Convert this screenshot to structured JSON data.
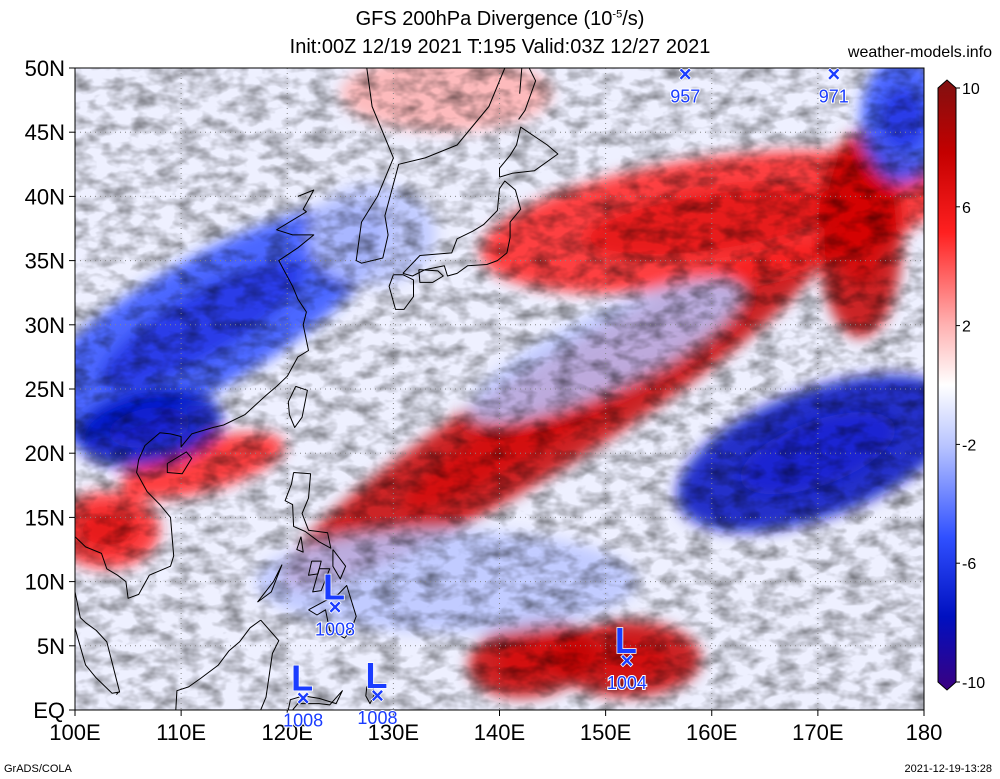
{
  "header": {
    "title_line1": "GFS 200hPa Divergence (10",
    "title_exp": "-5",
    "title_unit": "/s)",
    "title_line2": "Init:00Z 12/19 2021 T:195 Valid:03Z 12/27 2021",
    "credit": "weather-models.info"
  },
  "footer": {
    "left": "GrADS/COLA",
    "right": "2021-12-19-13:28"
  },
  "colors": {
    "strong_red": "#c40000",
    "red": "#ff2020",
    "light_red": "#ffb0b0",
    "white": "#ffffff",
    "light_blue": "#b8c4ff",
    "blue": "#3050ff",
    "strong_blue": "#0010c0",
    "low_marker": "#1a3cff"
  },
  "chart_data": {
    "type": "heatmap",
    "title": "GFS 200hPa Divergence (10^-5/s)",
    "xlim": [
      100,
      180
    ],
    "ylim": [
      0,
      50
    ],
    "grid": true,
    "x_ticks": [
      {
        "v": 100,
        "label": "100E"
      },
      {
        "v": 110,
        "label": "110E"
      },
      {
        "v": 120,
        "label": "120E"
      },
      {
        "v": 130,
        "label": "130E"
      },
      {
        "v": 140,
        "label": "140E"
      },
      {
        "v": 150,
        "label": "150E"
      },
      {
        "v": 160,
        "label": "160E"
      },
      {
        "v": 170,
        "label": "170E"
      },
      {
        "v": 180,
        "label": "180"
      }
    ],
    "y_ticks": [
      {
        "v": 0,
        "label": "EQ"
      },
      {
        "v": 5,
        "label": "5N"
      },
      {
        "v": 10,
        "label": "10N"
      },
      {
        "v": 15,
        "label": "15N"
      },
      {
        "v": 20,
        "label": "20N"
      },
      {
        "v": 25,
        "label": "25N"
      },
      {
        "v": 30,
        "label": "30N"
      },
      {
        "v": 35,
        "label": "35N"
      },
      {
        "v": 40,
        "label": "40N"
      },
      {
        "v": 45,
        "label": "45N"
      },
      {
        "v": 50,
        "label": "50N"
      }
    ],
    "colorbar": {
      "min": -10,
      "max": 10,
      "tick_labels": [
        {
          "v": 10,
          "label": "10"
        },
        {
          "v": 6,
          "label": "6"
        },
        {
          "v": 2,
          "label": "2"
        },
        {
          "v": -2,
          "label": "-2"
        },
        {
          "v": -6,
          "label": "-6"
        },
        {
          "v": -10,
          "label": "-10"
        }
      ]
    },
    "field_features": [
      {
        "kind": "div",
        "lon": 145,
        "lat": 23,
        "rx": 30,
        "ry": 4,
        "angle": -32,
        "v": 6
      },
      {
        "kind": "div",
        "lon": 160,
        "lat": 38,
        "rx": 22,
        "ry": 5,
        "angle": -8,
        "v": 5
      },
      {
        "kind": "div",
        "lon": 174,
        "lat": 37,
        "rx": 4,
        "ry": 8,
        "angle": 0,
        "v": 7
      },
      {
        "kind": "div",
        "lon": 103,
        "lat": 14,
        "rx": 5,
        "ry": 3,
        "angle": 0,
        "v": 5
      },
      {
        "kind": "div",
        "lon": 152,
        "lat": 4,
        "rx": 7,
        "ry": 3,
        "angle": 0,
        "v": 7
      },
      {
        "kind": "div",
        "lon": 143,
        "lat": 4,
        "rx": 6,
        "ry": 3,
        "angle": -10,
        "v": 6
      },
      {
        "kind": "div",
        "lon": 112,
        "lat": 19,
        "rx": 8,
        "ry": 2,
        "angle": -15,
        "v": 4
      },
      {
        "kind": "div",
        "lon": 135,
        "lat": 48,
        "rx": 10,
        "ry": 3,
        "angle": 0,
        "v": 3
      },
      {
        "kind": "conv",
        "lon": 112,
        "lat": 30,
        "rx": 20,
        "ry": 5,
        "angle": -30,
        "v": -5
      },
      {
        "kind": "conv",
        "lon": 107,
        "lat": 22,
        "rx": 7,
        "ry": 3,
        "angle": -10,
        "v": -7
      },
      {
        "kind": "conv",
        "lon": 170,
        "lat": 20,
        "rx": 14,
        "ry": 5,
        "angle": -20,
        "v": -6
      },
      {
        "kind": "conv",
        "lon": 178,
        "lat": 46,
        "rx": 4,
        "ry": 5,
        "angle": 0,
        "v": -5
      },
      {
        "kind": "conv",
        "lon": 150,
        "lat": 28,
        "rx": 14,
        "ry": 3,
        "angle": -25,
        "v": -3
      },
      {
        "kind": "conv",
        "lon": 135,
        "lat": 10,
        "rx": 18,
        "ry": 4,
        "angle": 0,
        "v": -3
      },
      {
        "kind": "conv",
        "lon": 128,
        "lat": 37,
        "rx": 6,
        "ry": 4,
        "angle": 0,
        "v": -3
      }
    ],
    "lows": [
      {
        "lon": 157.5,
        "lat": 49.5,
        "pressure": "957"
      },
      {
        "lon": 171.5,
        "lat": 49.5,
        "pressure": "971"
      },
      {
        "lon": 124.5,
        "lat": 8.0,
        "pressure": "1008"
      },
      {
        "lon": 152.0,
        "lat": 3.8,
        "pressure": "1004"
      },
      {
        "lon": 121.5,
        "lat": 0.9,
        "pressure": "1008"
      },
      {
        "lon": 128.5,
        "lat": 1.1,
        "pressure": "1008"
      }
    ],
    "low_symbol": "L",
    "low_marker": "×",
    "coastlines": [
      [
        [
          127.5,
          50
        ],
        [
          128,
          47
        ],
        [
          130,
          43
        ],
        [
          128.5,
          40
        ],
        [
          127,
          38
        ],
        [
          126.5,
          35
        ],
        [
          127,
          34.8
        ],
        [
          129,
          35.2
        ],
        [
          129.5,
          37
        ],
        [
          129.2,
          38.5
        ],
        [
          130.5,
          42.5
        ],
        [
          133,
          43
        ],
        [
          136,
          44
        ],
        [
          139,
          47
        ],
        [
          140.5,
          50
        ]
      ],
      [
        [
          121,
          40
        ],
        [
          122.5,
          40.5
        ],
        [
          121.5,
          39
        ],
        [
          121.8,
          38.8
        ],
        [
          119,
          37.4
        ],
        [
          120.5,
          37
        ],
        [
          122.5,
          37
        ],
        [
          121,
          36
        ],
        [
          119.2,
          35
        ],
        [
          120.5,
          33
        ],
        [
          121,
          32
        ],
        [
          121.8,
          31
        ],
        [
          121.5,
          30
        ],
        [
          122,
          28
        ],
        [
          121,
          27.5
        ],
        [
          120,
          26
        ],
        [
          119,
          25.2
        ],
        [
          118,
          24.5
        ],
        [
          116,
          23
        ],
        [
          114,
          22.2
        ],
        [
          113,
          22
        ],
        [
          111,
          21.5
        ],
        [
          110,
          20.5
        ],
        [
          110,
          21.3
        ],
        [
          109,
          21.5
        ],
        [
          108,
          21.6
        ],
        [
          106.6,
          20.6
        ],
        [
          106,
          19.5
        ],
        [
          105.8,
          18.5
        ],
        [
          106.8,
          17
        ],
        [
          108,
          16
        ],
        [
          109,
          15
        ],
        [
          109.3,
          12
        ],
        [
          109,
          11.2
        ],
        [
          107,
          10.5
        ],
        [
          106,
          9
        ],
        [
          105,
          8.7
        ],
        [
          104.8,
          10
        ],
        [
          104,
          10.5
        ],
        [
          103,
          11
        ],
        [
          102.5,
          12.2
        ],
        [
          101,
          12.7
        ],
        [
          100,
          13.5
        ],
        [
          99.5,
          11
        ],
        [
          100,
          9.2
        ],
        [
          100.5,
          7.2
        ],
        [
          101,
          6.8
        ],
        [
          102,
          6.2
        ],
        [
          103,
          5.3
        ],
        [
          103.4,
          4
        ],
        [
          104.2,
          1.4
        ],
        [
          103.5,
          1.3
        ],
        [
          102,
          2.5
        ],
        [
          101,
          3.5
        ],
        [
          100.3,
          5.5
        ],
        [
          100,
          6.4
        ]
      ],
      [
        [
          120.8,
          25.2
        ],
        [
          121.9,
          24.9
        ],
        [
          121.4,
          22.8
        ],
        [
          120.7,
          22
        ],
        [
          120.2,
          23
        ],
        [
          120.1,
          24
        ],
        [
          120.8,
          25.2
        ]
      ],
      [
        [
          108.7,
          19.2
        ],
        [
          110.5,
          20.1
        ],
        [
          111,
          19.6
        ],
        [
          110.1,
          18.4
        ],
        [
          108.7,
          18.5
        ],
        [
          108.7,
          19.2
        ]
      ],
      [
        [
          130,
          33.9
        ],
        [
          129.6,
          33
        ],
        [
          130.2,
          31.2
        ],
        [
          131,
          31.2
        ],
        [
          131.9,
          32.2
        ],
        [
          131.9,
          33.5
        ],
        [
          130.9,
          33.9
        ],
        [
          130,
          33.9
        ]
      ],
      [
        [
          132.4,
          34.3
        ],
        [
          132.5,
          33.3
        ],
        [
          133.7,
          33.3
        ],
        [
          134.7,
          33.8
        ],
        [
          134.2,
          34.2
        ],
        [
          132.4,
          34.3
        ]
      ],
      [
        [
          130.9,
          34
        ],
        [
          132.5,
          35.4
        ],
        [
          135.5,
          35.6
        ],
        [
          136,
          36.7
        ],
        [
          137.5,
          37.3
        ],
        [
          138.5,
          37.8
        ],
        [
          139.8,
          38.9
        ],
        [
          140,
          40.6
        ],
        [
          140.5,
          41.2
        ],
        [
          141.5,
          40.5
        ],
        [
          142,
          39
        ],
        [
          141,
          38
        ],
        [
          141,
          36.8
        ],
        [
          140.7,
          35.6
        ],
        [
          139.8,
          35
        ],
        [
          138.8,
          34.7
        ],
        [
          137,
          34.6
        ],
        [
          136,
          34
        ],
        [
          135.1,
          33.8
        ],
        [
          134.8,
          34.6
        ],
        [
          133,
          34.3
        ],
        [
          131.8,
          33.8
        ],
        [
          130.9,
          34
        ]
      ],
      [
        [
          140,
          41.5
        ],
        [
          141.2,
          41.8
        ],
        [
          143.3,
          42
        ],
        [
          145.5,
          43.3
        ],
        [
          144.5,
          44
        ],
        [
          142,
          45.4
        ],
        [
          141.6,
          44
        ],
        [
          141,
          43.2
        ],
        [
          140,
          42.2
        ],
        [
          140,
          41.5
        ]
      ],
      [
        [
          141.8,
          46
        ],
        [
          142.4,
          46.7
        ],
        [
          143.4,
          49
        ],
        [
          142.8,
          50
        ],
        [
          142.1,
          50
        ],
        [
          141.9,
          48
        ]
      ],
      [
        [
          120.6,
          18.5
        ],
        [
          122.2,
          18.4
        ],
        [
          122,
          16.5
        ],
        [
          121.4,
          15.3
        ],
        [
          122,
          14
        ],
        [
          123.8,
          13.8
        ],
        [
          124.1,
          12.6
        ],
        [
          123,
          13.1
        ],
        [
          121.7,
          13.9
        ],
        [
          120.6,
          14.3
        ],
        [
          120.5,
          16
        ],
        [
          119.8,
          16.3
        ],
        [
          120.4,
          17.6
        ],
        [
          120.6,
          18.5
        ]
      ],
      [
        [
          121.3,
          13.5
        ],
        [
          121.5,
          12.3
        ],
        [
          120.9,
          12.5
        ],
        [
          121.3,
          13.5
        ]
      ],
      [
        [
          122.3,
          11.6
        ],
        [
          123.2,
          11.6
        ],
        [
          122.9,
          10.6
        ],
        [
          122,
          10.5
        ],
        [
          122.3,
          11.6
        ]
      ],
      [
        [
          123,
          11
        ],
        [
          124,
          11
        ],
        [
          123.2,
          9.3
        ],
        [
          122.4,
          9.2
        ],
        [
          123,
          11
        ]
      ],
      [
        [
          124.3,
          12.5
        ],
        [
          125.5,
          11.2
        ],
        [
          125,
          10.2
        ],
        [
          124.3,
          11.2
        ],
        [
          124.3,
          12.5
        ]
      ],
      [
        [
          117.2,
          8.4
        ],
        [
          118.7,
          10
        ],
        [
          119.5,
          11.3
        ],
        [
          118.5,
          9.2
        ],
        [
          117.2,
          8.4
        ]
      ],
      [
        [
          122,
          7.8
        ],
        [
          122.9,
          8.2
        ],
        [
          123.8,
          8.6
        ],
        [
          124.8,
          9
        ],
        [
          125.6,
          9.7
        ],
        [
          126.5,
          7.3
        ],
        [
          126,
          6.2
        ],
        [
          125.4,
          5.6
        ],
        [
          124,
          6.2
        ],
        [
          123.6,
          7.8
        ],
        [
          122.8,
          7.4
        ],
        [
          122,
          7.8
        ]
      ],
      [
        [
          117.5,
          7
        ],
        [
          119.2,
          5.4
        ],
        [
          118.6,
          4.4
        ],
        [
          118,
          1
        ],
        [
          117.5,
          0
        ],
        [
          109.5,
          0
        ],
        [
          109.6,
          1.5
        ],
        [
          110.7,
          1.8
        ],
        [
          111.9,
          2.5
        ],
        [
          113.5,
          3.5
        ],
        [
          114.5,
          4.6
        ],
        [
          115.5,
          5.3
        ],
        [
          116.5,
          6.4
        ],
        [
          117.5,
          7
        ]
      ],
      [
        [
          120.1,
          0
        ],
        [
          120.3,
          0.8
        ],
        [
          121.5,
          1.1
        ],
        [
          123,
          0.9
        ],
        [
          124.6,
          0.5
        ],
        [
          125.2,
          1.5
        ],
        [
          124,
          0.4
        ],
        [
          123,
          0.5
        ],
        [
          121,
          0.5
        ],
        [
          120.5,
          0
        ]
      ],
      [
        [
          127.5,
          1.8
        ],
        [
          128,
          2.2
        ],
        [
          128.2,
          1.2
        ],
        [
          127.8,
          0.5
        ],
        [
          127.4,
          1.1
        ],
        [
          127.5,
          1.8
        ]
      ],
      [
        [
          103.9,
          1.2
        ],
        [
          104.1,
          1.4
        ]
      ]
    ]
  }
}
